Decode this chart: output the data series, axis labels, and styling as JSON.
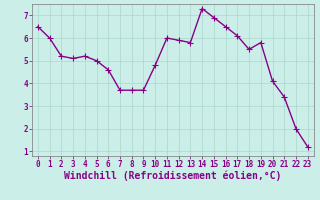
{
  "x": [
    0,
    1,
    2,
    3,
    4,
    5,
    6,
    7,
    8,
    9,
    10,
    11,
    12,
    13,
    14,
    15,
    16,
    17,
    18,
    19,
    20,
    21,
    22,
    23
  ],
  "y": [
    6.5,
    6.0,
    5.2,
    5.1,
    5.2,
    5.0,
    4.6,
    3.7,
    3.7,
    3.7,
    4.8,
    6.0,
    5.9,
    5.8,
    7.3,
    6.9,
    6.5,
    6.1,
    5.5,
    5.8,
    4.1,
    3.4,
    2.0,
    1.2
  ],
  "line_color": "#880088",
  "marker": "+",
  "marker_size": 4,
  "bg_color": "#cceee8",
  "grid_color": "#aad8cc",
  "xlabel": "Windchill (Refroidissement éolien,°C)",
  "xlabel_color": "#880088",
  "xlim_min": -0.5,
  "xlim_max": 23.5,
  "ylim_min": 0.8,
  "ylim_max": 7.5,
  "yticks": [
    1,
    2,
    3,
    4,
    5,
    6,
    7
  ],
  "xticks": [
    0,
    1,
    2,
    3,
    4,
    5,
    6,
    7,
    8,
    9,
    10,
    11,
    12,
    13,
    14,
    15,
    16,
    17,
    18,
    19,
    20,
    21,
    22,
    23
  ],
  "tick_color": "#880088",
  "tick_labelsize": 5.5,
  "xlabel_fontsize": 7,
  "linewidth": 1.0,
  "spine_color": "#777777"
}
